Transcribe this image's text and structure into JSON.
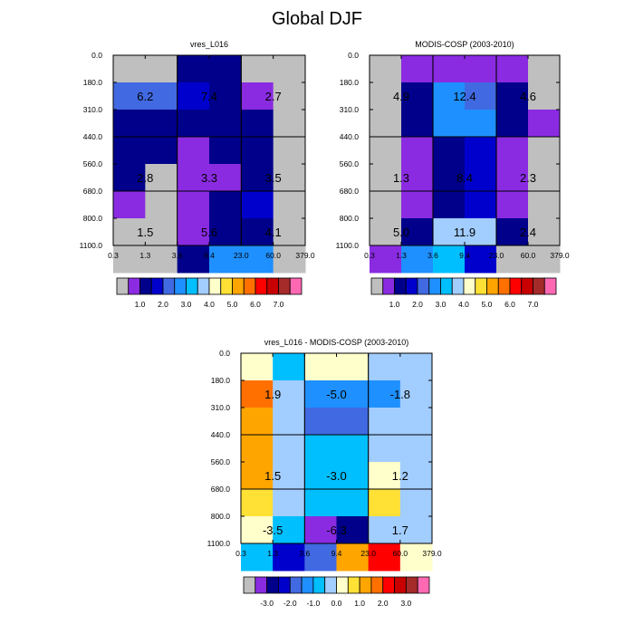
{
  "title": "Global DJF",
  "palettes": {
    "abs": [
      "#bfbfbf",
      "#8a2be2",
      "#00008b",
      "#0000cd",
      "#4169e1",
      "#1e90ff",
      "#00bfff",
      "#a2cdff",
      "#ffffcc",
      "#ffe135",
      "#ffa500",
      "#ff7000",
      "#ff0000",
      "#c80000",
      "#a52a2a",
      "#ff69b4"
    ],
    "diff": [
      "#bfbfbf",
      "#8a2be2",
      "#00008b",
      "#0000cd",
      "#4169e1",
      "#1e90ff",
      "#00bfff",
      "#a2cdff",
      "#ffffcc",
      "#ffe135",
      "#ffa500",
      "#ff7000",
      "#ff0000",
      "#c80000",
      "#a52a2a",
      "#ff69b4"
    ]
  },
  "chart_data": [
    {
      "type": "heatmap",
      "name": "panel-vres",
      "title": "vres_L016",
      "x_ticks": [
        "0.3",
        "1.3",
        "3.6",
        "9.4",
        "23.0",
        "60.0",
        "379.0"
      ],
      "y_ticks": [
        "0.0",
        "180.0",
        "310.0",
        "440.0",
        "560.0",
        "680.0",
        "800.0",
        "1100.0"
      ],
      "xlabel": "",
      "ylabel": "",
      "cells": [
        [
          0,
          0,
          2,
          2,
          0,
          0
        ],
        [
          4,
          4,
          3,
          2,
          1,
          0
        ],
        [
          2,
          2,
          2,
          2,
          2,
          0
        ],
        [
          2,
          2,
          1,
          2,
          2,
          0
        ],
        [
          2,
          0,
          1,
          1,
          2,
          0
        ],
        [
          1,
          0,
          1,
          2,
          3,
          0
        ],
        [
          0,
          0,
          1,
          2,
          2,
          0
        ],
        [
          0,
          0,
          2,
          5,
          5,
          0
        ]
      ],
      "cell_labels": [
        {
          "text": "6.2",
          "col": 0,
          "row": 1
        },
        {
          "text": "7.4",
          "col": 2,
          "row": 1
        },
        {
          "text": "2.7",
          "col": 4,
          "row": 1
        },
        {
          "text": "2.8",
          "col": 0,
          "row": 4
        },
        {
          "text": "3.3",
          "col": 2,
          "row": 4
        },
        {
          "text": "3.5",
          "col": 4,
          "row": 4
        },
        {
          "text": "1.5",
          "col": 0,
          "row": 6
        },
        {
          "text": "5.6",
          "col": 2,
          "row": 6
        },
        {
          "text": "4.1",
          "col": 4,
          "row": 6
        }
      ],
      "colorbar": {
        "palette": "abs",
        "labels": [
          "1.0",
          "2.0",
          "3.0",
          "4.0",
          "5.0",
          "6.0",
          "7.0"
        ]
      }
    },
    {
      "type": "heatmap",
      "name": "panel-modis",
      "title": "MODIS-COSP (2003-2010)",
      "x_ticks": [
        "0.3",
        "1.3",
        "3.6",
        "9.4",
        "23.0",
        "60.0",
        "379.0"
      ],
      "y_ticks": [
        "0.0",
        "180.0",
        "310.0",
        "440.0",
        "560.0",
        "680.0",
        "800.0",
        "1100.0"
      ],
      "xlabel": "",
      "ylabel": "",
      "cells": [
        [
          0,
          1,
          1,
          1,
          1,
          0
        ],
        [
          0,
          2,
          5,
          4,
          2,
          0
        ],
        [
          0,
          2,
          5,
          5,
          2,
          1
        ],
        [
          0,
          1,
          2,
          3,
          1,
          0
        ],
        [
          0,
          1,
          2,
          3,
          1,
          0
        ],
        [
          0,
          1,
          2,
          3,
          1,
          0
        ],
        [
          0,
          2,
          7,
          7,
          2,
          0
        ],
        [
          1,
          5,
          6,
          3,
          0,
          0
        ]
      ],
      "cell_labels": [
        {
          "text": "4.9",
          "col": 0,
          "row": 1
        },
        {
          "text": "12.4",
          "col": 2,
          "row": 1
        },
        {
          "text": "4.6",
          "col": 4,
          "row": 1
        },
        {
          "text": "1.3",
          "col": 0,
          "row": 4
        },
        {
          "text": "8.4",
          "col": 2,
          "row": 4
        },
        {
          "text": "2.3",
          "col": 4,
          "row": 4
        },
        {
          "text": "5.0",
          "col": 0,
          "row": 6
        },
        {
          "text": "11.9",
          "col": 2,
          "row": 6
        },
        {
          "text": "2.4",
          "col": 4,
          "row": 6
        }
      ],
      "colorbar": {
        "palette": "abs",
        "labels": [
          "1.0",
          "2.0",
          "3.0",
          "4.0",
          "5.0",
          "6.0",
          "7.0"
        ]
      }
    },
    {
      "type": "heatmap",
      "name": "panel-diff",
      "title": "vres_L016 - MODIS-COSP (2003-2010)",
      "x_ticks": [
        "0.3",
        "1.3",
        "3.6",
        "9.4",
        "23.0",
        "60.0",
        "379.0"
      ],
      "y_ticks": [
        "0.0",
        "180.0",
        "310.0",
        "440.0",
        "560.0",
        "680.0",
        "800.0",
        "1100.0"
      ],
      "xlabel": "",
      "ylabel": "",
      "cells": [
        [
          8,
          6,
          8,
          8,
          7,
          7
        ],
        [
          11,
          7,
          5,
          5,
          5,
          7
        ],
        [
          10,
          7,
          4,
          4,
          7,
          7
        ],
        [
          10,
          7,
          6,
          6,
          7,
          7
        ],
        [
          10,
          7,
          6,
          6,
          8,
          7
        ],
        [
          9,
          7,
          6,
          6,
          9,
          7
        ],
        [
          8,
          6,
          1,
          2,
          7,
          7
        ],
        [
          6,
          3,
          4,
          10,
          12,
          8
        ]
      ],
      "cell_labels": [
        {
          "text": "1.9",
          "col": 0,
          "row": 1
        },
        {
          "text": "-5.0",
          "col": 2,
          "row": 1
        },
        {
          "text": "-1.8",
          "col": 4,
          "row": 1
        },
        {
          "text": "1.5",
          "col": 0,
          "row": 4
        },
        {
          "text": "-3.0",
          "col": 2,
          "row": 4
        },
        {
          "text": "1.2",
          "col": 4,
          "row": 4
        },
        {
          "text": "-3.5",
          "col": 0,
          "row": 6
        },
        {
          "text": "-6.3",
          "col": 2,
          "row": 6
        },
        {
          "text": "1.7",
          "col": 4,
          "row": 6
        }
      ],
      "colorbar": {
        "palette": "diff",
        "labels": [
          "-3.0",
          "-2.0",
          "-1.0",
          "0.0",
          "1.0",
          "2.0",
          "3.0"
        ]
      }
    }
  ]
}
